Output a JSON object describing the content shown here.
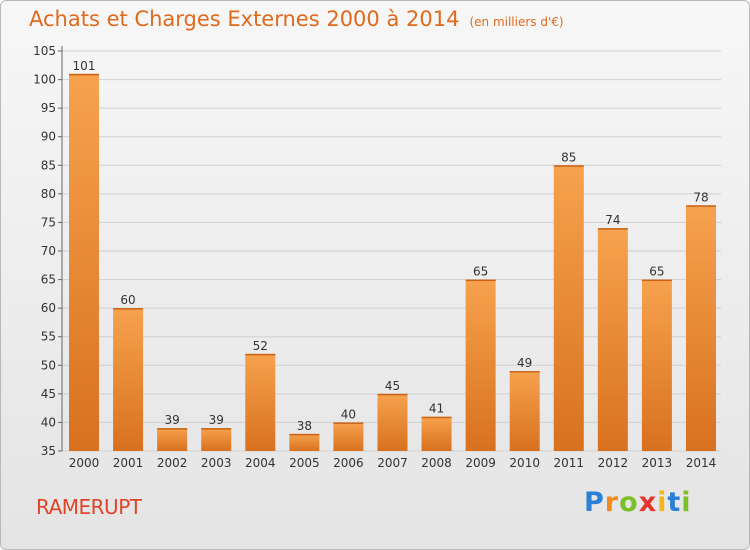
{
  "title": "Achats et Charges Externes 2000 à 2014",
  "subtitle": "(en milliers d'€)",
  "commune": "RAMERUPT",
  "logo": {
    "letters": [
      "P",
      "r",
      "o",
      "x",
      "i",
      "t",
      "i"
    ],
    "colors": [
      "#2a7fd6",
      "#f08a1c",
      "#7cbf26",
      "#e8332a",
      "#f2b81a",
      "#2a7fd6",
      "#7cbf26"
    ]
  },
  "colors": {
    "bar_light": "#f6a24e",
    "bar_dark": "#d8711f",
    "title": "#e06a1c",
    "commune": "#e0452a"
  },
  "chart_data": {
    "type": "bar",
    "categories": [
      "2000",
      "2001",
      "2002",
      "2003",
      "2004",
      "2005",
      "2006",
      "2007",
      "2008",
      "2009",
      "2010",
      "2011",
      "2012",
      "2013",
      "2014"
    ],
    "values": [
      101,
      60,
      39,
      39,
      52,
      38,
      40,
      45,
      41,
      65,
      49,
      85,
      74,
      65,
      78
    ],
    "ylim": [
      35,
      105
    ],
    "yticks": [
      35,
      40,
      45,
      50,
      55,
      60,
      65,
      70,
      75,
      80,
      85,
      90,
      95,
      100,
      105
    ],
    "grid": true,
    "data_labels": true
  }
}
